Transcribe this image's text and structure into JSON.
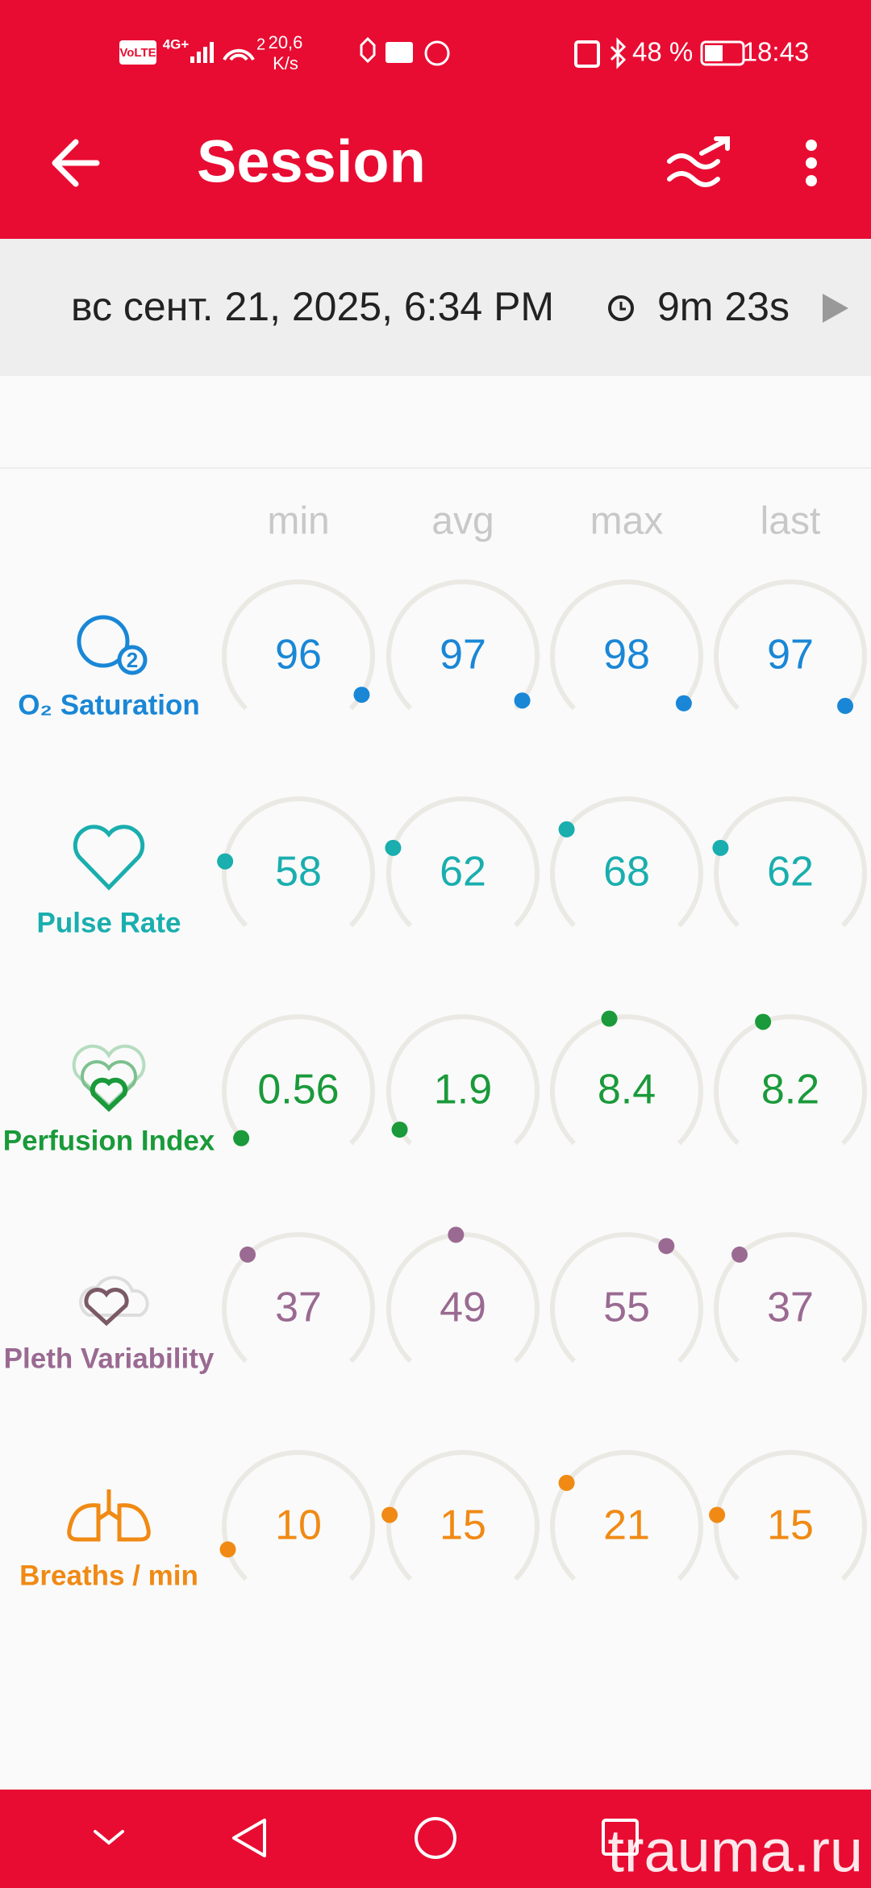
{
  "status_bar": {
    "volte": "VoLTE",
    "network": "4G+",
    "sim": "2",
    "speed": "20,6",
    "speed_unit": "K/s",
    "battery": "48 %",
    "time": "18:43"
  },
  "header": {
    "title": "Session"
  },
  "session": {
    "date": "вс сент. 21, 2025, 6:34 PM",
    "duration": "9m 23s"
  },
  "table": {
    "columns": [
      "min",
      "avg",
      "max",
      "last"
    ],
    "rows": [
      {
        "label": "O₂ Saturation",
        "values": [
          "96",
          "97",
          "98",
          "97"
        ]
      },
      {
        "label": "Pulse Rate",
        "values": [
          "58",
          "62",
          "68",
          "62"
        ]
      },
      {
        "label": "Perfusion Index",
        "values": [
          "0.56",
          "1.9",
          "8.4",
          "8.2"
        ]
      },
      {
        "label": "Pleth Variability",
        "values": [
          "37",
          "49",
          "55",
          "37"
        ]
      },
      {
        "label": "Breaths / min",
        "values": [
          "10",
          "15",
          "21",
          "15"
        ]
      }
    ]
  },
  "watermark": "trauma.ru"
}
